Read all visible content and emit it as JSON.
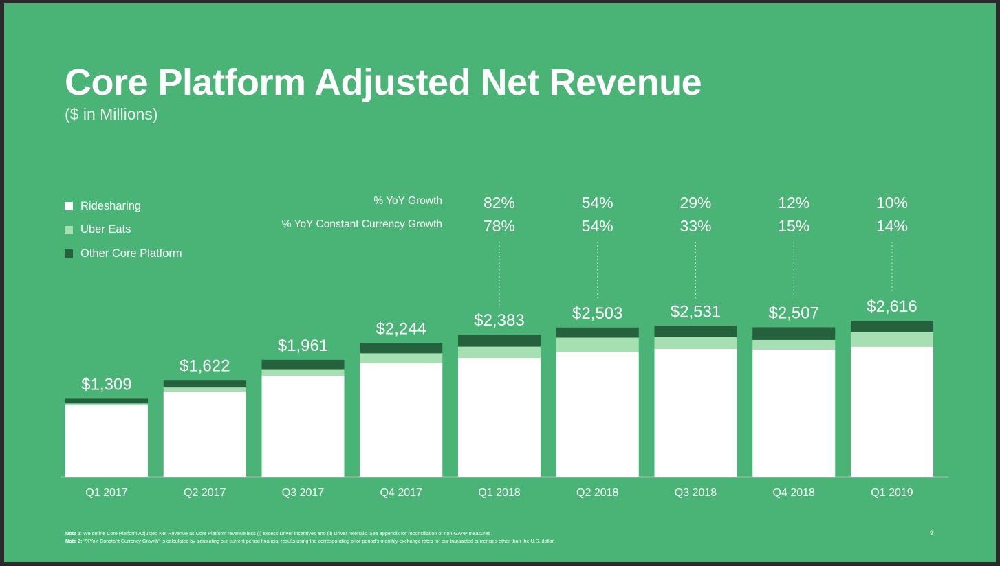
{
  "header": {
    "title": "Core Platform Adjusted Net Revenue",
    "subtitle": "($ in Millions)"
  },
  "legend": [
    {
      "label": "Ridesharing",
      "color": "#ffffff"
    },
    {
      "label": "Uber Eats",
      "color": "#a6dfb1"
    },
    {
      "label": "Other Core Platform",
      "color": "#24613c"
    }
  ],
  "growth_rows": {
    "yoy_label": "% YoY Growth",
    "cc_label": "% YoY Constant Currency Growth"
  },
  "chart_data": {
    "type": "bar",
    "stacked": true,
    "title": "Core Platform Adjusted Net Revenue",
    "ylabel": "$ in Millions",
    "categories": [
      "Q1 2017",
      "Q2 2017",
      "Q3 2017",
      "Q4 2017",
      "Q1 2018",
      "Q2 2018",
      "Q3 2018",
      "Q4 2018",
      "Q1 2019"
    ],
    "totals": [
      1309,
      1622,
      1961,
      2244,
      2383,
      2503,
      2531,
      2507,
      2616
    ],
    "total_labels": [
      "$1,309",
      "$1,622",
      "$1,961",
      "$2,244",
      "$2,383",
      "$2,503",
      "$2,531",
      "$2,507",
      "$2,616"
    ],
    "series": [
      {
        "name": "Ridesharing",
        "values": [
          1200,
          1427,
          1693,
          1911,
          1993,
          2094,
          2146,
          2135,
          2182
        ]
      },
      {
        "name": "Uber Eats",
        "values": [
          30,
          70,
          110,
          160,
          190,
          240,
          200,
          160,
          250
        ]
      },
      {
        "name": "Other Core Platform",
        "values": [
          79,
          125,
          158,
          173,
          200,
          169,
          185,
          212,
          184
        ]
      }
    ],
    "yoy_growth": [
      "",
      "",
      "",
      "",
      "82%",
      "54%",
      "29%",
      "12%",
      "10%"
    ],
    "yoy_cc_growth": [
      "",
      "",
      "",
      "",
      "78%",
      "54%",
      "33%",
      "15%",
      "14%"
    ],
    "ylim": [
      0,
      2616
    ]
  },
  "footer": {
    "note1_label": "Note 1",
    "note1_text": ": We define Core Platform Adjusted Net Revenue as Core Platform revenue less (i) excess Driver incentives and (ii) Driver referrals. See appendix for reconciliation of non-GAAP measures.",
    "note2_label": "Note 2:",
    "note2_text": " \"%YoY Constant Currency Growth\" is calculated by translating our current period financial results using the corresponding prior period's monthly exchange rates for our transacted currencies other than the U.S. dollar.",
    "page_number": "9"
  }
}
